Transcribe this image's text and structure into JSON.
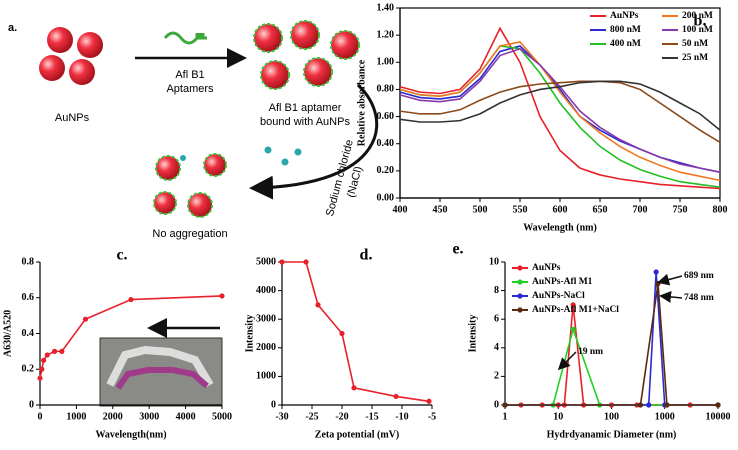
{
  "schematic": {
    "panel": "a.",
    "particles": "AuNPs",
    "aptamer": [
      "Afl B1",
      "Aptamers"
    ],
    "bound": [
      "Afl B1 aptamer",
      "bound with AuNPs"
    ],
    "salt": [
      "Sodium chloride",
      "(NaCl)"
    ],
    "result": "No aggregation"
  },
  "chart_data": [
    {
      "type": "line",
      "panel": "b.",
      "x_label": "Wavelength (nm)",
      "y_label": "Relative absorbance",
      "frame": true,
      "markers": false,
      "xlim": [
        400,
        800
      ],
      "xticks": [
        400,
        450,
        500,
        550,
        600,
        650,
        700,
        750,
        800
      ],
      "ylim": [
        0,
        1.4
      ],
      "yticks": [
        {
          "value": 0,
          "label": "0.00"
        },
        {
          "value": 0.2,
          "label": "0.20"
        },
        {
          "value": 0.4,
          "label": "0.40"
        },
        {
          "value": 0.6,
          "label": "0.60"
        },
        {
          "value": 0.8,
          "label": "0.80"
        },
        {
          "value": 1.0,
          "label": "1.00"
        },
        {
          "value": 1.2,
          "label": "1.20"
        },
        {
          "value": 1.4,
          "label": "1.40"
        }
      ],
      "x": [
        400,
        425,
        450,
        475,
        500,
        525,
        550,
        575,
        600,
        625,
        650,
        675,
        700,
        725,
        750,
        775,
        800
      ],
      "series": [
        {
          "name": "AuNPs",
          "color": "#e8202a",
          "values": [
            0.82,
            0.78,
            0.77,
            0.8,
            0.95,
            1.25,
            1.0,
            0.6,
            0.35,
            0.22,
            0.17,
            0.14,
            0.12,
            0.1,
            0.09,
            0.08,
            0.07
          ]
        },
        {
          "name": "800 nM",
          "color": "#2a2ad0",
          "values": [
            0.78,
            0.74,
            0.73,
            0.75,
            0.88,
            1.08,
            1.12,
            0.98,
            0.8,
            0.6,
            0.5,
            0.42,
            0.36,
            0.3,
            0.26,
            0.22,
            0.19
          ]
        },
        {
          "name": "400 nM",
          "color": "#22c022",
          "values": [
            0.8,
            0.76,
            0.75,
            0.78,
            0.92,
            1.12,
            1.1,
            0.92,
            0.7,
            0.52,
            0.38,
            0.28,
            0.21,
            0.16,
            0.12,
            0.1,
            0.08
          ]
        },
        {
          "name": "200 nM",
          "color": "#f07820",
          "values": [
            0.8,
            0.76,
            0.75,
            0.78,
            0.92,
            1.12,
            1.15,
            0.98,
            0.78,
            0.6,
            0.48,
            0.38,
            0.3,
            0.24,
            0.19,
            0.16,
            0.13
          ]
        },
        {
          "name": "100 nM",
          "color": "#8a3aa8",
          "values": [
            0.76,
            0.72,
            0.71,
            0.73,
            0.86,
            1.05,
            1.1,
            0.98,
            0.82,
            0.64,
            0.52,
            0.43,
            0.36,
            0.3,
            0.25,
            0.22,
            0.19
          ]
        },
        {
          "name": "50 nM",
          "color": "#8b4a1c",
          "values": [
            0.64,
            0.62,
            0.62,
            0.65,
            0.72,
            0.78,
            0.82,
            0.84,
            0.85,
            0.86,
            0.86,
            0.85,
            0.8,
            0.7,
            0.6,
            0.5,
            0.41
          ]
        },
        {
          "name": "25 nM",
          "color": "#333333",
          "values": [
            0.58,
            0.56,
            0.56,
            0.57,
            0.62,
            0.7,
            0.76,
            0.8,
            0.82,
            0.85,
            0.86,
            0.86,
            0.84,
            0.78,
            0.7,
            0.62,
            0.5
          ]
        }
      ]
    },
    {
      "type": "line",
      "panel": "c.",
      "x_label": "Wavelength(nm)",
      "y_label": "A630/A520",
      "frame": false,
      "markers": true,
      "xlim": [
        0,
        5000
      ],
      "xticks": [
        0,
        1000,
        2000,
        3000,
        4000,
        5000
      ],
      "ylim": [
        0,
        0.8
      ],
      "yticks": [
        0,
        0.2,
        0.4,
        0.6,
        0.8
      ],
      "x": [
        0,
        50,
        100,
        200,
        400,
        600,
        1250,
        2500,
        5000
      ],
      "series": [
        {
          "color": "#e8202a",
          "values": [
            0.15,
            0.2,
            0.25,
            0.28,
            0.3,
            0.3,
            0.48,
            0.59,
            0.61
          ]
        }
      ]
    },
    {
      "type": "line",
      "panel": "d.",
      "x_label": "Zeta potential (mV)",
      "y_label": "Intensity",
      "frame": false,
      "markers": true,
      "xlim": [
        -30,
        -5
      ],
      "xticks": [
        -30,
        -25,
        -20,
        -15,
        -10,
        -5
      ],
      "ylim": [
        0,
        5000
      ],
      "yticks": [
        0,
        1000,
        2000,
        3000,
        4000,
        5000
      ],
      "x": [
        -30,
        -26,
        -24,
        -20,
        -18,
        -11,
        -5.5
      ],
      "series": [
        {
          "color": "#e8202a",
          "values": [
            5000,
            5000,
            3500,
            2500,
            600,
            300,
            130
          ]
        }
      ]
    },
    {
      "type": "line",
      "panel": "e.",
      "x_label": "Hydrdyanamic Diameter (nm)",
      "y_label": "Intensity",
      "frame": false,
      "markers": true,
      "xscale": "log",
      "xlim": [
        1,
        10000
      ],
      "xticks": [
        1,
        10,
        100,
        1000,
        10000
      ],
      "ylim": [
        0,
        10
      ],
      "yticks": [
        0,
        2,
        4,
        6,
        8,
        10
      ],
      "annotations": [
        "19 nm",
        "689 nm",
        "748 nm"
      ],
      "series": [
        {
          "name": "AuNPs",
          "color": "#e8202a",
          "x": [
            1,
            2,
            5,
            10,
            13,
            19,
            30,
            100,
            300,
            1000,
            3000,
            10000
          ],
          "values": [
            0,
            0,
            0,
            0,
            0,
            7,
            0,
            0,
            0,
            0,
            0,
            0
          ]
        },
        {
          "name": "AuNPs-Afl M1",
          "color": "#22d022",
          "x": [
            1,
            8,
            19,
            60,
            10000
          ],
          "values": [
            0,
            0,
            5.3,
            0,
            0
          ]
        },
        {
          "name": "AuNPs-NaCl",
          "color": "#2a2ad0",
          "x": [
            1,
            500,
            689,
            1000,
            10000
          ],
          "values": [
            0,
            0,
            9.3,
            0,
            0
          ]
        },
        {
          "name": "AuNPs-Afl M1+NaCl",
          "color": "#5a2a10",
          "x": [
            1,
            350,
            748,
            1100,
            10000
          ],
          "values": [
            0,
            0,
            8.5,
            0,
            0
          ]
        }
      ]
    }
  ]
}
